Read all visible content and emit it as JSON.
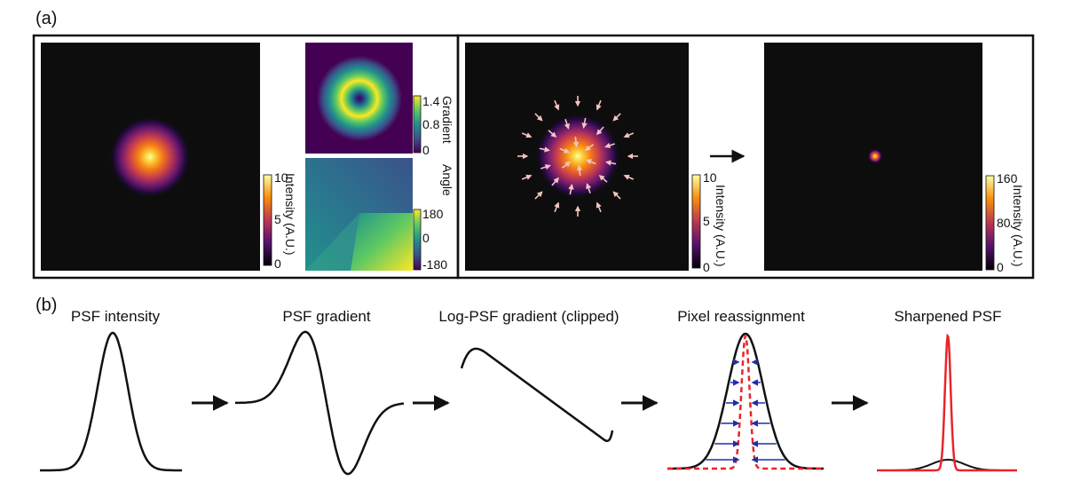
{
  "panel_a": {
    "label": "(a)",
    "psf_colorbar": {
      "title": "Intensity (A.U.)",
      "ticks": [
        "10",
        "5",
        "0"
      ]
    },
    "gradient_colorbar": {
      "title": "Gradient",
      "ticks": [
        "1.4",
        "0.8",
        "0"
      ]
    },
    "angle_colorbar": {
      "title": "Angle",
      "ticks": [
        "180",
        "0",
        "-180"
      ]
    },
    "arrows_colorbar": {
      "title": "Intensity (A.U.)",
      "ticks": [
        "10",
        "5",
        "0"
      ]
    },
    "sharpened_colorbar": {
      "title": "Intensity (A.U.)",
      "ticks": [
        "160",
        "80",
        "0"
      ]
    }
  },
  "panel_b": {
    "label": "(b)",
    "titles": {
      "psf_intensity": "PSF intensity",
      "psf_gradient": "PSF gradient",
      "log_psf_gradient": "Log-PSF gradient (clipped)",
      "pixel_reassignment": "Pixel reassignment",
      "sharpened_psf": "Sharpened PSF"
    }
  },
  "colors": {
    "curve": "#111111",
    "reassign_dashed": "#e8252a",
    "reassign_arrows": "#1f2fa8",
    "sharpened": "#e8252a",
    "field_arrows": "#f3c4c0",
    "panel_bg": "#0d0d0d"
  }
}
